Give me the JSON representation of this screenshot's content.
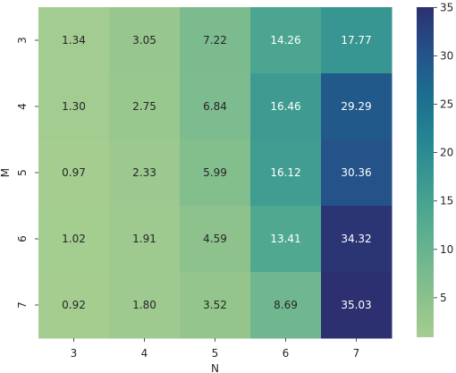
{
  "chart_data": {
    "type": "heatmap",
    "title": "",
    "xlabel": "N",
    "ylabel": "M",
    "x_categories": [
      "3",
      "4",
      "5",
      "6",
      "7"
    ],
    "y_categories": [
      "3",
      "4",
      "5",
      "6",
      "7"
    ],
    "values": [
      [
        1.34,
        3.05,
        7.22,
        14.26,
        17.77
      ],
      [
        1.3,
        2.75,
        6.84,
        16.46,
        29.29
      ],
      [
        0.97,
        2.33,
        5.99,
        16.12,
        30.36
      ],
      [
        1.02,
        1.91,
        4.59,
        13.41,
        34.32
      ],
      [
        0.92,
        1.8,
        3.52,
        8.69,
        35.03
      ]
    ],
    "value_format": "2 decimals",
    "colorbar": {
      "min": 0.92,
      "max": 35.03,
      "ticks": [
        5,
        10,
        15,
        20,
        25,
        30,
        35
      ],
      "colormap": "crest"
    }
  }
}
